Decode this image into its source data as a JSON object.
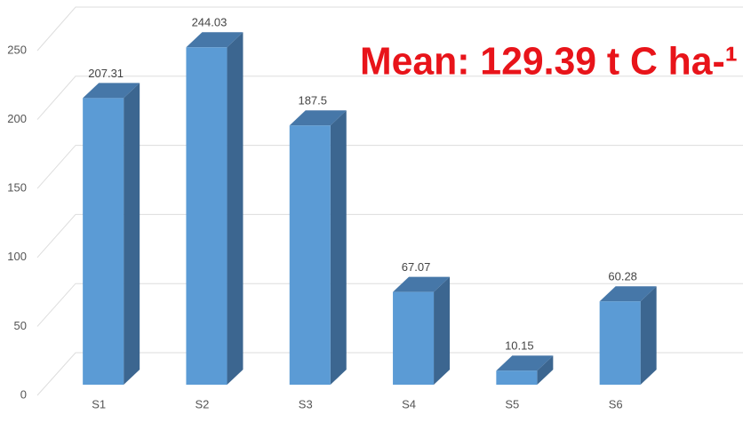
{
  "chart_data": {
    "type": "bar3d",
    "annotation": "Mean: 129.39 t C ha-¹",
    "categories": [
      "S1",
      "S2",
      "S3",
      "S4",
      "S5",
      "S6"
    ],
    "values": [
      207.31,
      244.03,
      187.5,
      67.07,
      10.15,
      60.28
    ],
    "color": "#5b9bd5",
    "ylim": [
      0,
      250
    ],
    "yticks": [
      0,
      50,
      100,
      150,
      200,
      250
    ],
    "grid": true
  }
}
